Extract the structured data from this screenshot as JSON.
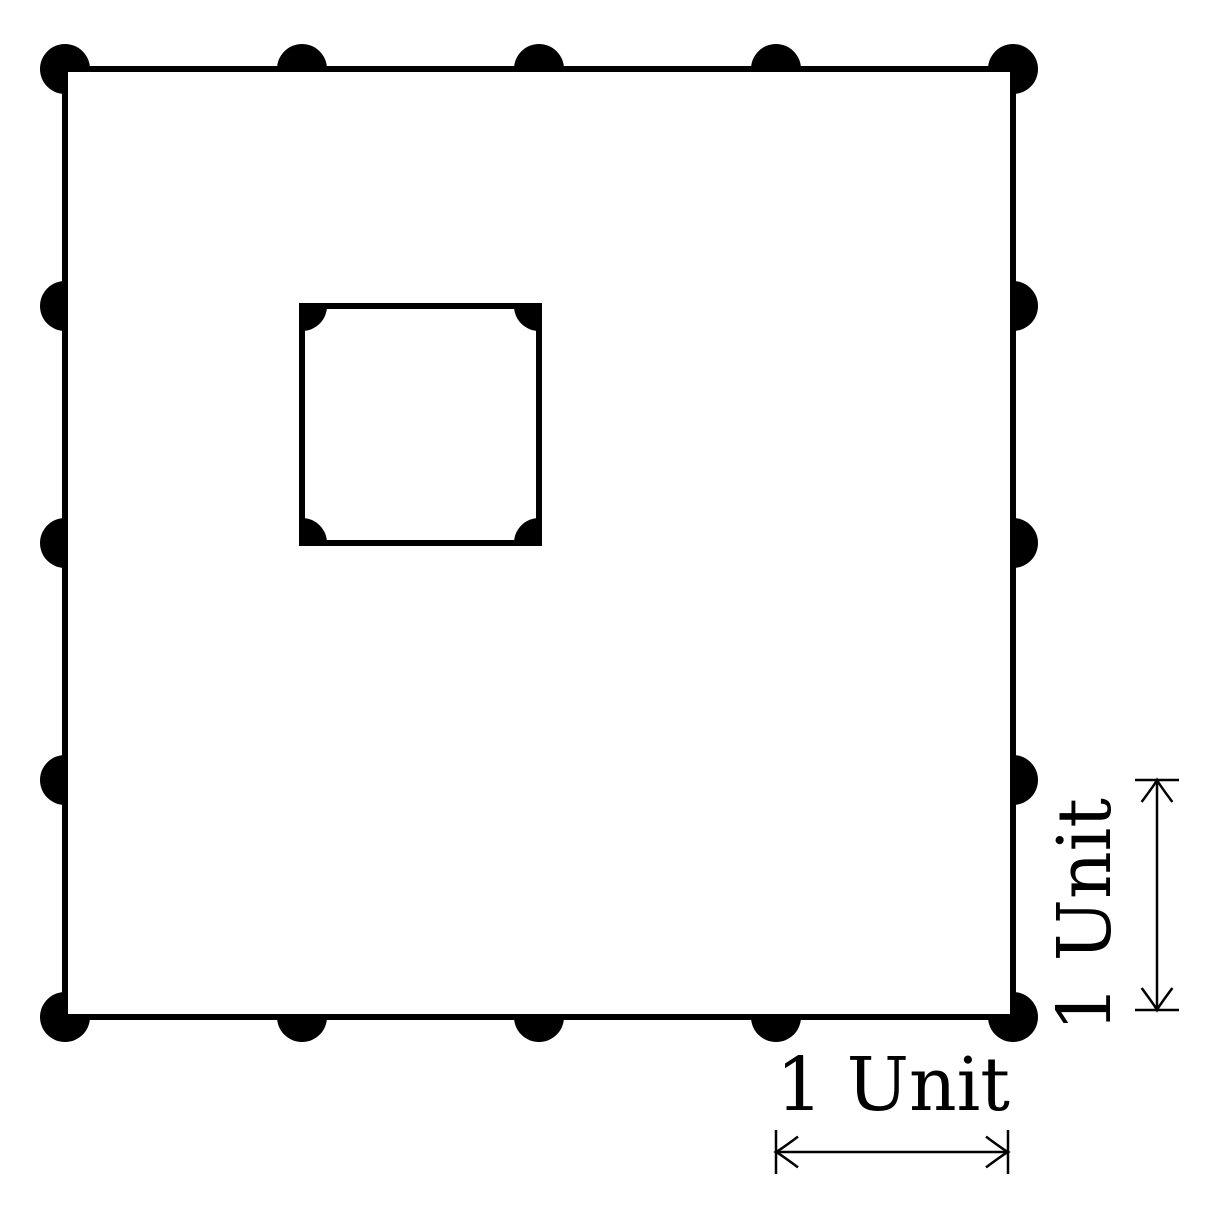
{
  "colors": {
    "stroke": "#000000",
    "background": "#ffffff"
  },
  "grid": {
    "units": 4,
    "outer_square": {
      "from": [
        0,
        0
      ],
      "to": [
        4,
        4
      ]
    },
    "inner_square": {
      "from": [
        1,
        2
      ],
      "to": [
        2,
        3
      ]
    },
    "boundary_points": [
      [
        0,
        4
      ],
      [
        1,
        4
      ],
      [
        2,
        4
      ],
      [
        3,
        4
      ],
      [
        4,
        4
      ],
      [
        0,
        3
      ],
      [
        4,
        3
      ],
      [
        0,
        2
      ],
      [
        4,
        2
      ],
      [
        0,
        1
      ],
      [
        4,
        1
      ],
      [
        0,
        0
      ],
      [
        1,
        0
      ],
      [
        2,
        0
      ],
      [
        3,
        0
      ],
      [
        4,
        0
      ]
    ],
    "inner_points": [
      [
        1,
        3
      ],
      [
        2,
        3
      ],
      [
        1,
        2
      ],
      [
        2,
        2
      ]
    ]
  },
  "labels": {
    "horizontal_unit": "1 Unit",
    "vertical_unit": "1 Unit"
  }
}
